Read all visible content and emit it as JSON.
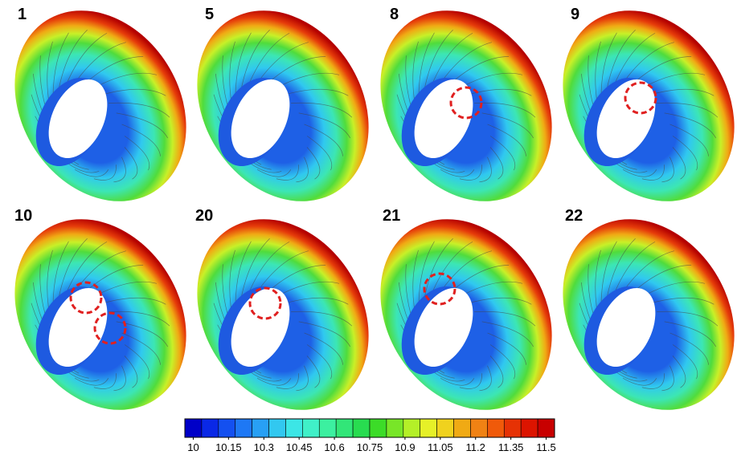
{
  "panels": [
    {
      "label": "1"
    },
    {
      "label": "5"
    },
    {
      "label": "8"
    },
    {
      "label": "9"
    },
    {
      "label": "10"
    },
    {
      "label": "20"
    },
    {
      "label": "21"
    },
    {
      "label": "22"
    }
  ],
  "colorbar": {
    "ticks": [
      10,
      10.15,
      10.3,
      10.45,
      10.6,
      10.75,
      10.9,
      11.05,
      11.2,
      11.35,
      11.5
    ],
    "colors": [
      "#0000c8",
      "#0a28e6",
      "#1450f0",
      "#1e78f5",
      "#28a0f5",
      "#32c8f0",
      "#3ce6e6",
      "#40f0c8",
      "#3cf0a0",
      "#32e678",
      "#28dc50",
      "#3cdc28",
      "#78e628",
      "#b4f028",
      "#e6f028",
      "#f0d21e",
      "#f0aa14",
      "#f08214",
      "#f05a0a",
      "#e63205",
      "#dc1400",
      "#c80000"
    ]
  }
}
